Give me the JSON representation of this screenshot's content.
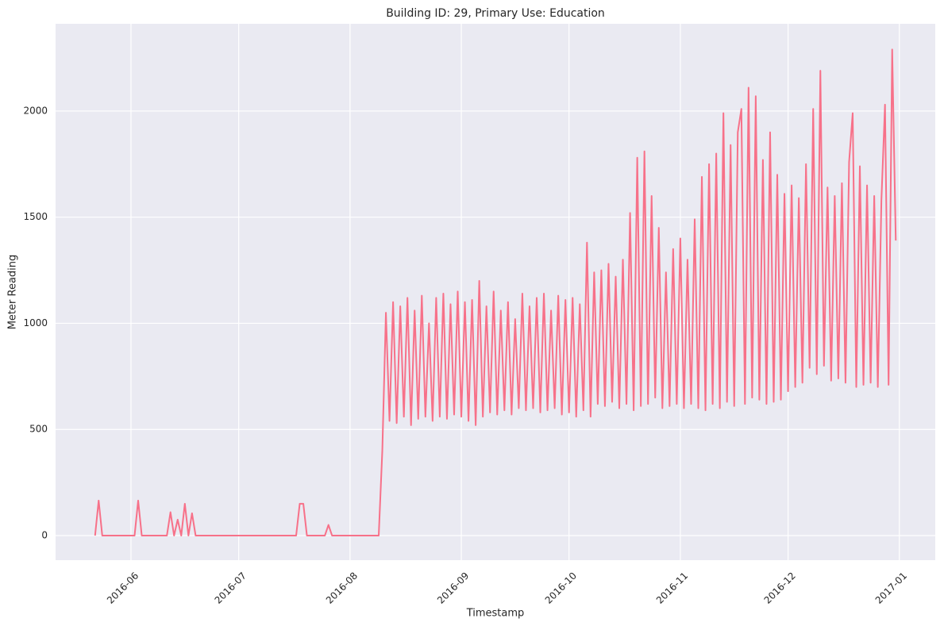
{
  "chart_data": {
    "type": "line",
    "title": "Building ID: 29, Primary Use: Education",
    "x_label": "Timestamp",
    "y_label": "Meter Reading",
    "grid": true,
    "xlim": [
      "2016-05-11",
      "2017-01-11"
    ],
    "ylim": [
      -116,
      2411
    ],
    "xticks": [
      {
        "value": "2016-06-01",
        "label": "2016-06"
      },
      {
        "value": "2016-07-01",
        "label": "2016-07"
      },
      {
        "value": "2016-08-01",
        "label": "2016-08"
      },
      {
        "value": "2016-09-01",
        "label": "2016-09"
      },
      {
        "value": "2016-10-01",
        "label": "2016-10"
      },
      {
        "value": "2016-11-01",
        "label": "2016-11"
      },
      {
        "value": "2016-12-01",
        "label": "2016-12"
      },
      {
        "value": "2017-01-01",
        "label": "2017-01"
      }
    ],
    "yticks": [
      0,
      500,
      1000,
      1500,
      2000
    ],
    "x": [
      "2016-05-22",
      "2016-05-23",
      "2016-05-24",
      "2016-06-02",
      "2016-06-03",
      "2016-06-04",
      "2016-06-11",
      "2016-06-12",
      "2016-06-13",
      "2016-06-14",
      "2016-06-15",
      "2016-06-16",
      "2016-06-17",
      "2016-06-18",
      "2016-06-19",
      "2016-07-17",
      "2016-07-18",
      "2016-07-19",
      "2016-07-20",
      "2016-07-25",
      "2016-07-26",
      "2016-07-27",
      "2016-08-09",
      "2016-08-10",
      "2016-08-11",
      "2016-08-12",
      "2016-08-13",
      "2016-08-14",
      "2016-08-15",
      "2016-08-16",
      "2016-08-17",
      "2016-08-18",
      "2016-08-19",
      "2016-08-20",
      "2016-08-21",
      "2016-08-22",
      "2016-08-23",
      "2016-08-24",
      "2016-08-25",
      "2016-08-26",
      "2016-08-27",
      "2016-08-28",
      "2016-08-29",
      "2016-08-30",
      "2016-08-31",
      "2016-09-01",
      "2016-09-02",
      "2016-09-03",
      "2016-09-04",
      "2016-09-05",
      "2016-09-06",
      "2016-09-07",
      "2016-09-08",
      "2016-09-09",
      "2016-09-10",
      "2016-09-11",
      "2016-09-12",
      "2016-09-13",
      "2016-09-14",
      "2016-09-15",
      "2016-09-16",
      "2016-09-17",
      "2016-09-18",
      "2016-09-19",
      "2016-09-20",
      "2016-09-21",
      "2016-09-22",
      "2016-09-23",
      "2016-09-24",
      "2016-09-25",
      "2016-09-26",
      "2016-09-27",
      "2016-09-28",
      "2016-09-29",
      "2016-09-30",
      "2016-10-01",
      "2016-10-02",
      "2016-10-03",
      "2016-10-04",
      "2016-10-05",
      "2016-10-06",
      "2016-10-07",
      "2016-10-08",
      "2016-10-09",
      "2016-10-10",
      "2016-10-11",
      "2016-10-12",
      "2016-10-13",
      "2016-10-14",
      "2016-10-15",
      "2016-10-16",
      "2016-10-17",
      "2016-10-18",
      "2016-10-19",
      "2016-10-20",
      "2016-10-21",
      "2016-10-22",
      "2016-10-23",
      "2016-10-24",
      "2016-10-25",
      "2016-10-26",
      "2016-10-27",
      "2016-10-28",
      "2016-10-29",
      "2016-10-30",
      "2016-10-31",
      "2016-11-01",
      "2016-11-02",
      "2016-11-03",
      "2016-11-04",
      "2016-11-05",
      "2016-11-06",
      "2016-11-07",
      "2016-11-08",
      "2016-11-09",
      "2016-11-10",
      "2016-11-11",
      "2016-11-12",
      "2016-11-13",
      "2016-11-14",
      "2016-11-15",
      "2016-11-16",
      "2016-11-17",
      "2016-11-18",
      "2016-11-19",
      "2016-11-20",
      "2016-11-21",
      "2016-11-22",
      "2016-11-23",
      "2016-11-24",
      "2016-11-25",
      "2016-11-26",
      "2016-11-27",
      "2016-11-28",
      "2016-11-29",
      "2016-11-30",
      "2016-12-01",
      "2016-12-02",
      "2016-12-03",
      "2016-12-04",
      "2016-12-05",
      "2016-12-06",
      "2016-12-07",
      "2016-12-08",
      "2016-12-09",
      "2016-12-10",
      "2016-12-11",
      "2016-12-12",
      "2016-12-13",
      "2016-12-14",
      "2016-12-15",
      "2016-12-16",
      "2016-12-17",
      "2016-12-18",
      "2016-12-19",
      "2016-12-20",
      "2016-12-21",
      "2016-12-22",
      "2016-12-23",
      "2016-12-24",
      "2016-12-25",
      "2016-12-26",
      "2016-12-27",
      "2016-12-28",
      "2016-12-29",
      "2016-12-30",
      "2016-12-31"
    ],
    "series": [
      {
        "color": "#f77189",
        "values": [
          0,
          165,
          0,
          0,
          165,
          0,
          0,
          110,
          0,
          75,
          0,
          150,
          0,
          105,
          0,
          0,
          150,
          150,
          0,
          0,
          50,
          0,
          0,
          400,
          1050,
          540,
          1100,
          530,
          1080,
          560,
          1120,
          520,
          1060,
          550,
          1130,
          560,
          1000,
          540,
          1120,
          560,
          1140,
          550,
          1090,
          570,
          1150,
          560,
          1100,
          540,
          1110,
          520,
          1200,
          560,
          1080,
          580,
          1150,
          570,
          1060,
          590,
          1100,
          570,
          1020,
          600,
          1140,
          590,
          1080,
          600,
          1120,
          580,
          1140,
          590,
          1060,
          600,
          1130,
          570,
          1110,
          580,
          1120,
          560,
          1090,
          590,
          1380,
          560,
          1240,
          620,
          1250,
          610,
          1280,
          630,
          1220,
          600,
          1300,
          620,
          1520,
          590,
          1780,
          610,
          1810,
          620,
          1600,
          650,
          1450,
          600,
          1240,
          610,
          1350,
          620,
          1400,
          600,
          1300,
          620,
          1490,
          600,
          1690,
          590,
          1750,
          620,
          1800,
          600,
          1990,
          630,
          1840,
          610,
          1900,
          2010,
          620,
          2110,
          650,
          2070,
          640,
          1770,
          620,
          1900,
          630,
          1700,
          640,
          1610,
          680,
          1650,
          700,
          1590,
          720,
          1750,
          790,
          2010,
          760,
          2190,
          800,
          1640,
          730,
          1600,
          740,
          1660,
          720,
          1760,
          1990,
          700,
          1740,
          710,
          1650,
          720,
          1600,
          700,
          1580,
          2030,
          710,
          2290,
          1390
        ]
      }
    ]
  }
}
